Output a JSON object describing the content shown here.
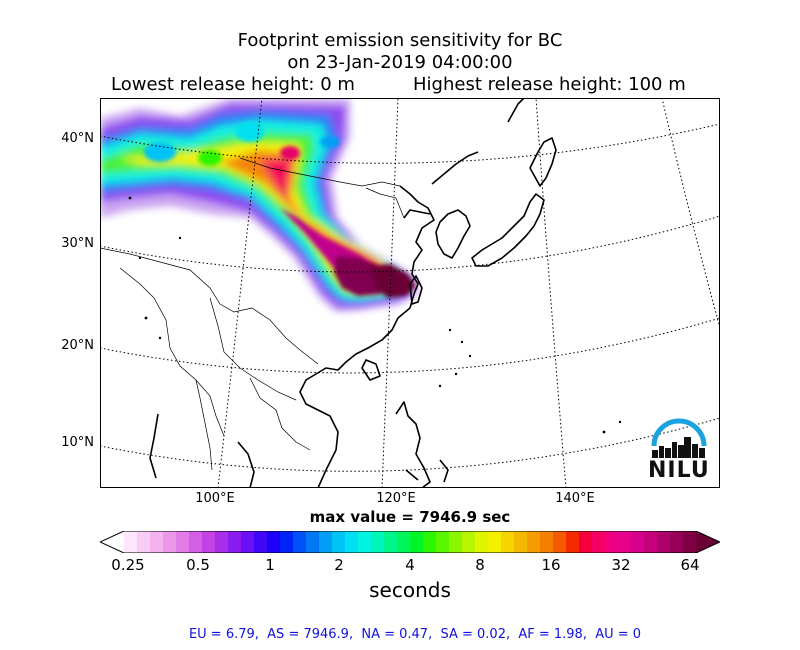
{
  "title": {
    "line1": "Footprint emission sensitivity for BC",
    "line2": "on 23-Jan-2019 04:00:00",
    "lowest": "Lowest release height: 0 m",
    "highest": "Highest release height: 100 m"
  },
  "map": {
    "lat_labels": [
      "40°N",
      "30°N",
      "20°N",
      "10°N"
    ],
    "lon_labels": [
      "100°E",
      "120°E",
      "140°E"
    ],
    "colors": {
      "coast": "#000000",
      "grid": "#000000"
    }
  },
  "max_value": "max value = 7946.9 sec",
  "colorbar": {
    "ticks": [
      "0.25",
      "0.5",
      "1",
      "2",
      "4",
      "8",
      "16",
      "32",
      "64"
    ],
    "unit": "seconds",
    "colors": [
      "#ffffff",
      "#fde5fb",
      "#f9ccf5",
      "#f4b3ef",
      "#eb98eb",
      "#e17be8",
      "#d45ee6",
      "#c441e6",
      "#a82de8",
      "#8a1cf0",
      "#6a10f5",
      "#4006f7",
      "#1c00f7",
      "#0024f7",
      "#0050f7",
      "#0078f5",
      "#009ff5",
      "#00c3f5",
      "#00e0f2",
      "#00f5e0",
      "#00f5b8",
      "#00f58a",
      "#00f55a",
      "#00f528",
      "#2cf500",
      "#5cf500",
      "#8cf500",
      "#b8f500",
      "#e0f500",
      "#f5f000",
      "#f5d400",
      "#f5b800",
      "#f59c00",
      "#f58000",
      "#f55a00",
      "#f52a00",
      "#f5003c",
      "#f50064",
      "#f00080",
      "#e6008c",
      "#d6008c",
      "#c4007a",
      "#ad006a",
      "#960056",
      "#800044",
      "#6a0036"
    ]
  },
  "stats": "EU = 6.79,  AS = 7946.9,  NA = 0.47,  SA = 0.02,  AF = 1.98,  AU = 0",
  "logo": {
    "text": "NILU",
    "arc_color": "#1aa3e0"
  }
}
